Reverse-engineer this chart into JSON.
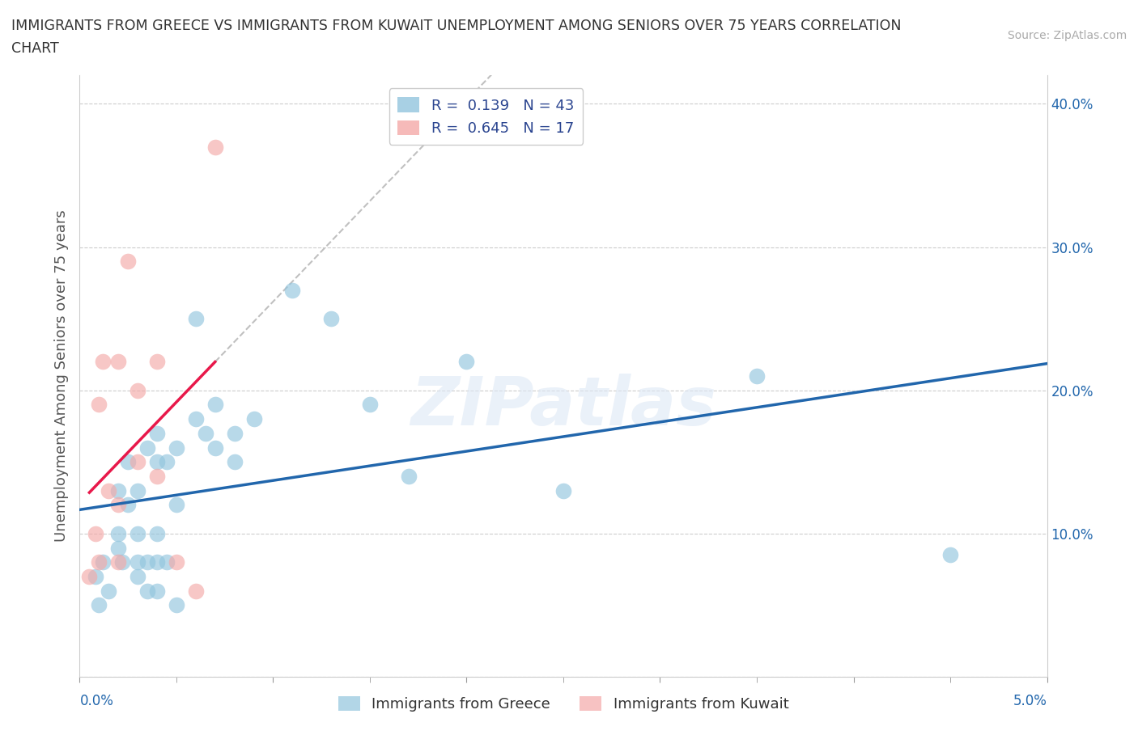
{
  "title_line1": "IMMIGRANTS FROM GREECE VS IMMIGRANTS FROM KUWAIT UNEMPLOYMENT AMONG SENIORS OVER 75 YEARS CORRELATION",
  "title_line2": "CHART",
  "source": "Source: ZipAtlas.com",
  "ylabel": "Unemployment Among Seniors over 75 years",
  "xlim": [
    0.0,
    0.05
  ],
  "ylim": [
    0.0,
    0.42
  ],
  "xticks_major": [
    0.0,
    0.05
  ],
  "xtick_minor_count": 10,
  "xticklabels_major": [
    "0.0%",
    "5.0%"
  ],
  "yticks": [
    0.0,
    0.1,
    0.2,
    0.3,
    0.4
  ],
  "yticklabels": [
    "",
    "10.0%",
    "20.0%",
    "30.0%",
    "40.0%"
  ],
  "greece_color": "#92c5de",
  "kuwait_color": "#f4a9a8",
  "greece_R": 0.139,
  "greece_N": 43,
  "kuwait_R": 0.645,
  "kuwait_N": 17,
  "greece_trend_color": "#2166ac",
  "kuwait_trend_color": "#e8184a",
  "greece_x": [
    0.0008,
    0.001,
    0.0012,
    0.0015,
    0.002,
    0.002,
    0.002,
    0.0022,
    0.0025,
    0.0025,
    0.003,
    0.003,
    0.003,
    0.003,
    0.0035,
    0.0035,
    0.0035,
    0.004,
    0.004,
    0.004,
    0.004,
    0.004,
    0.0045,
    0.0045,
    0.005,
    0.005,
    0.005,
    0.006,
    0.006,
    0.0065,
    0.007,
    0.007,
    0.008,
    0.008,
    0.009,
    0.011,
    0.013,
    0.015,
    0.017,
    0.02,
    0.025,
    0.035,
    0.045
  ],
  "greece_y": [
    0.07,
    0.05,
    0.08,
    0.06,
    0.09,
    0.1,
    0.13,
    0.08,
    0.12,
    0.15,
    0.07,
    0.08,
    0.1,
    0.13,
    0.06,
    0.08,
    0.16,
    0.1,
    0.15,
    0.17,
    0.06,
    0.08,
    0.08,
    0.15,
    0.05,
    0.12,
    0.16,
    0.18,
    0.25,
    0.17,
    0.16,
    0.19,
    0.17,
    0.15,
    0.18,
    0.27,
    0.25,
    0.19,
    0.14,
    0.22,
    0.13,
    0.21,
    0.085
  ],
  "kuwait_x": [
    0.0005,
    0.0008,
    0.001,
    0.001,
    0.0012,
    0.0015,
    0.002,
    0.002,
    0.002,
    0.0025,
    0.003,
    0.003,
    0.004,
    0.004,
    0.005,
    0.006,
    0.007
  ],
  "kuwait_y": [
    0.07,
    0.1,
    0.08,
    0.19,
    0.22,
    0.13,
    0.08,
    0.12,
    0.22,
    0.29,
    0.15,
    0.2,
    0.22,
    0.14,
    0.08,
    0.06,
    0.37
  ]
}
